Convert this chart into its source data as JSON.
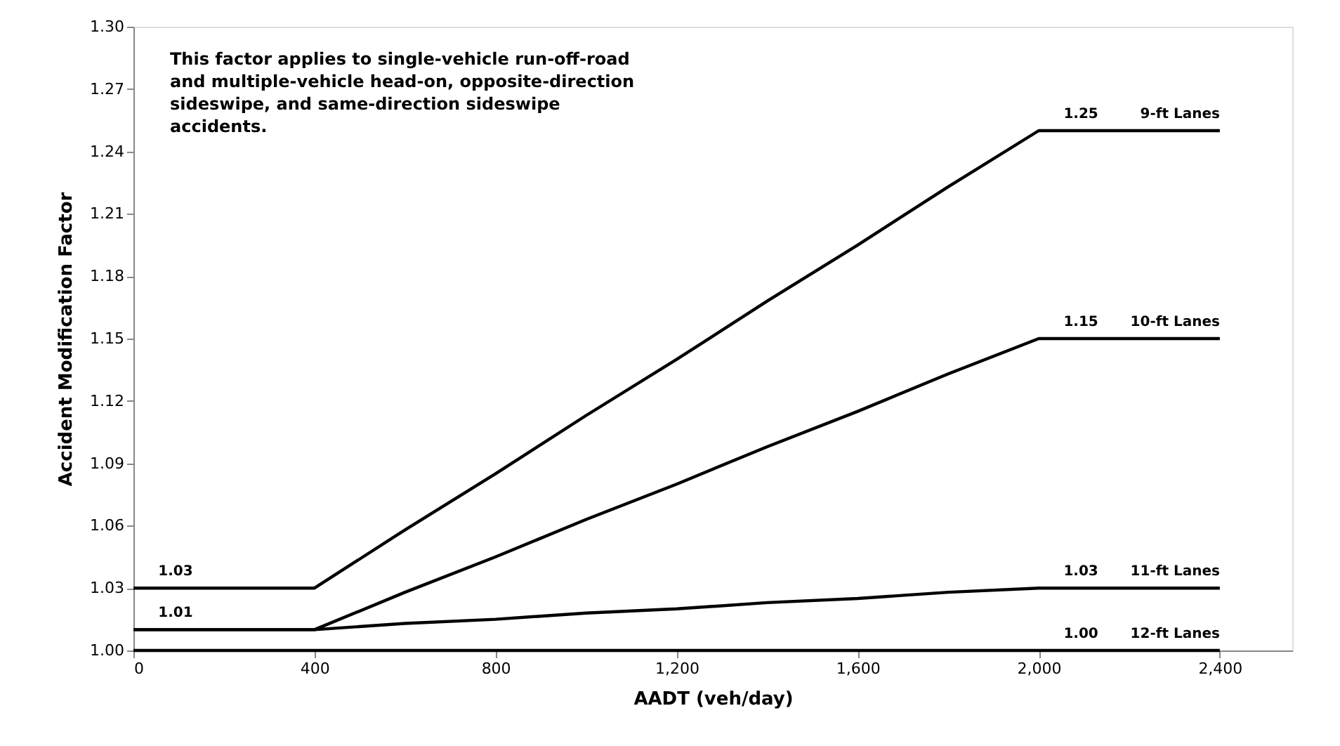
{
  "chart_data": {
    "type": "line",
    "xlabel": "AADT (veh/day)",
    "ylabel": "Accident Modification Factor",
    "x": [
      0,
      200,
      400,
      600,
      800,
      1000,
      1200,
      1400,
      1600,
      1800,
      2000,
      2200,
      2400
    ],
    "series": [
      {
        "name": "9-ft Lanes",
        "color": "#000000",
        "values": [
          1.03,
          1.03,
          1.03,
          1.058,
          1.085,
          1.113,
          1.14,
          1.168,
          1.195,
          1.223,
          1.25,
          1.25,
          1.25
        ],
        "value_labels": [
          "1.03",
          null,
          null,
          null,
          null,
          null,
          null,
          null,
          null,
          null,
          "1.25",
          null,
          null
        ]
      },
      {
        "name": "10-ft Lanes",
        "color": "#000000",
        "values": [
          1.01,
          1.01,
          1.01,
          1.028,
          1.045,
          1.063,
          1.08,
          1.098,
          1.115,
          1.133,
          1.15,
          1.15,
          1.15
        ],
        "value_labels": [
          "1.01",
          null,
          null,
          null,
          null,
          null,
          null,
          null,
          null,
          null,
          "1.15",
          null,
          null
        ]
      },
      {
        "name": "11-ft Lanes",
        "color": "#000000",
        "values": [
          1.01,
          1.01,
          1.01,
          1.013,
          1.015,
          1.018,
          1.02,
          1.023,
          1.025,
          1.028,
          1.03,
          1.03,
          1.03
        ],
        "value_labels": [
          null,
          null,
          null,
          null,
          null,
          null,
          null,
          null,
          null,
          null,
          "1.03",
          null,
          null
        ]
      },
      {
        "name": "12-ft Lanes",
        "color": "#000000",
        "values": [
          1.0,
          1.0,
          1.0,
          1.0,
          1.0,
          1.0,
          1.0,
          1.0,
          1.0,
          1.0,
          1.0,
          1.0,
          1.0
        ],
        "value_labels": [
          null,
          null,
          null,
          null,
          null,
          null,
          null,
          null,
          null,
          null,
          "1.00",
          null,
          null
        ]
      }
    ],
    "xlim": [
      0,
      2560
    ],
    "xticks": [
      0,
      400,
      800,
      {
        "value": 1200,
        "label": "1,200"
      },
      {
        "value": 1600,
        "label": "1,600"
      },
      {
        "value": 2000,
        "label": "2,000"
      },
      {
        "value": 2400,
        "label": "2,400"
      }
    ],
    "ylim": [
      1.0,
      1.3
    ],
    "yticks": [
      {
        "value": 1.0,
        "label": "1.00"
      },
      1.03,
      1.06,
      1.09,
      1.12,
      1.15,
      1.18,
      1.21,
      1.24,
      1.27,
      {
        "value": 1.3,
        "label": "1.30"
      }
    ],
    "annotations": [
      "This factor applies to single-vehicle run-off-road\nand multiple-vehicle head-on, opposite-direction\nsideswipe, and same-direction sideswipe\naccidents."
    ],
    "grid": false,
    "marker": "none",
    "line_style": "solid"
  }
}
